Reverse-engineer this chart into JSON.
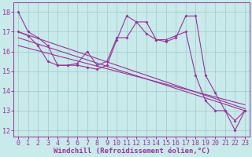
{
  "xlabel": "Windchill (Refroidissement éolien,°C)",
  "background_color": "#c8eaea",
  "grid_color": "#a0c8c8",
  "line_color": "#993399",
  "xlim": [
    -0.5,
    23.5
  ],
  "ylim": [
    11.7,
    18.5
  ],
  "yticks": [
    12,
    13,
    14,
    15,
    16,
    17,
    18
  ],
  "xticks": [
    0,
    1,
    2,
    3,
    4,
    5,
    6,
    7,
    8,
    9,
    10,
    11,
    12,
    13,
    14,
    15,
    16,
    17,
    18,
    19,
    20,
    21,
    22,
    23
  ],
  "series1_x": [
    0,
    1,
    2,
    3,
    4,
    5,
    6,
    7,
    8,
    9,
    10,
    11,
    12,
    13,
    14,
    15,
    16,
    17,
    18,
    19,
    20,
    21,
    22,
    23
  ],
  "series1_y": [
    18.0,
    17.0,
    16.7,
    16.3,
    15.3,
    15.3,
    15.3,
    15.2,
    15.1,
    15.3,
    16.6,
    17.8,
    17.5,
    16.9,
    16.6,
    16.5,
    16.7,
    17.8,
    17.8,
    14.8,
    13.9,
    13.0,
    12.0,
    13.0
  ],
  "series2_x": [
    0,
    1,
    2,
    3,
    4,
    5,
    6,
    7,
    8,
    9,
    10,
    11,
    12,
    13,
    14,
    15,
    16,
    17,
    18,
    19,
    20,
    21,
    22,
    23
  ],
  "series2_y": [
    17.0,
    16.8,
    16.3,
    15.5,
    15.3,
    15.3,
    15.4,
    16.0,
    15.3,
    15.5,
    16.7,
    16.7,
    17.5,
    17.5,
    16.6,
    16.6,
    16.8,
    17.0,
    14.8,
    13.5,
    13.0,
    13.0,
    12.5,
    13.0
  ],
  "series3_x": [
    0,
    23
  ],
  "series3_y": [
    17.0,
    13.1
  ],
  "series4_x": [
    0,
    23
  ],
  "series4_y": [
    16.3,
    13.3
  ],
  "series5_x": [
    0,
    23
  ],
  "series5_y": [
    16.7,
    13.0
  ],
  "tick_fontsize": 6,
  "xlabel_fontsize": 6.5,
  "marker_size": 2.0,
  "line_width": 0.8
}
